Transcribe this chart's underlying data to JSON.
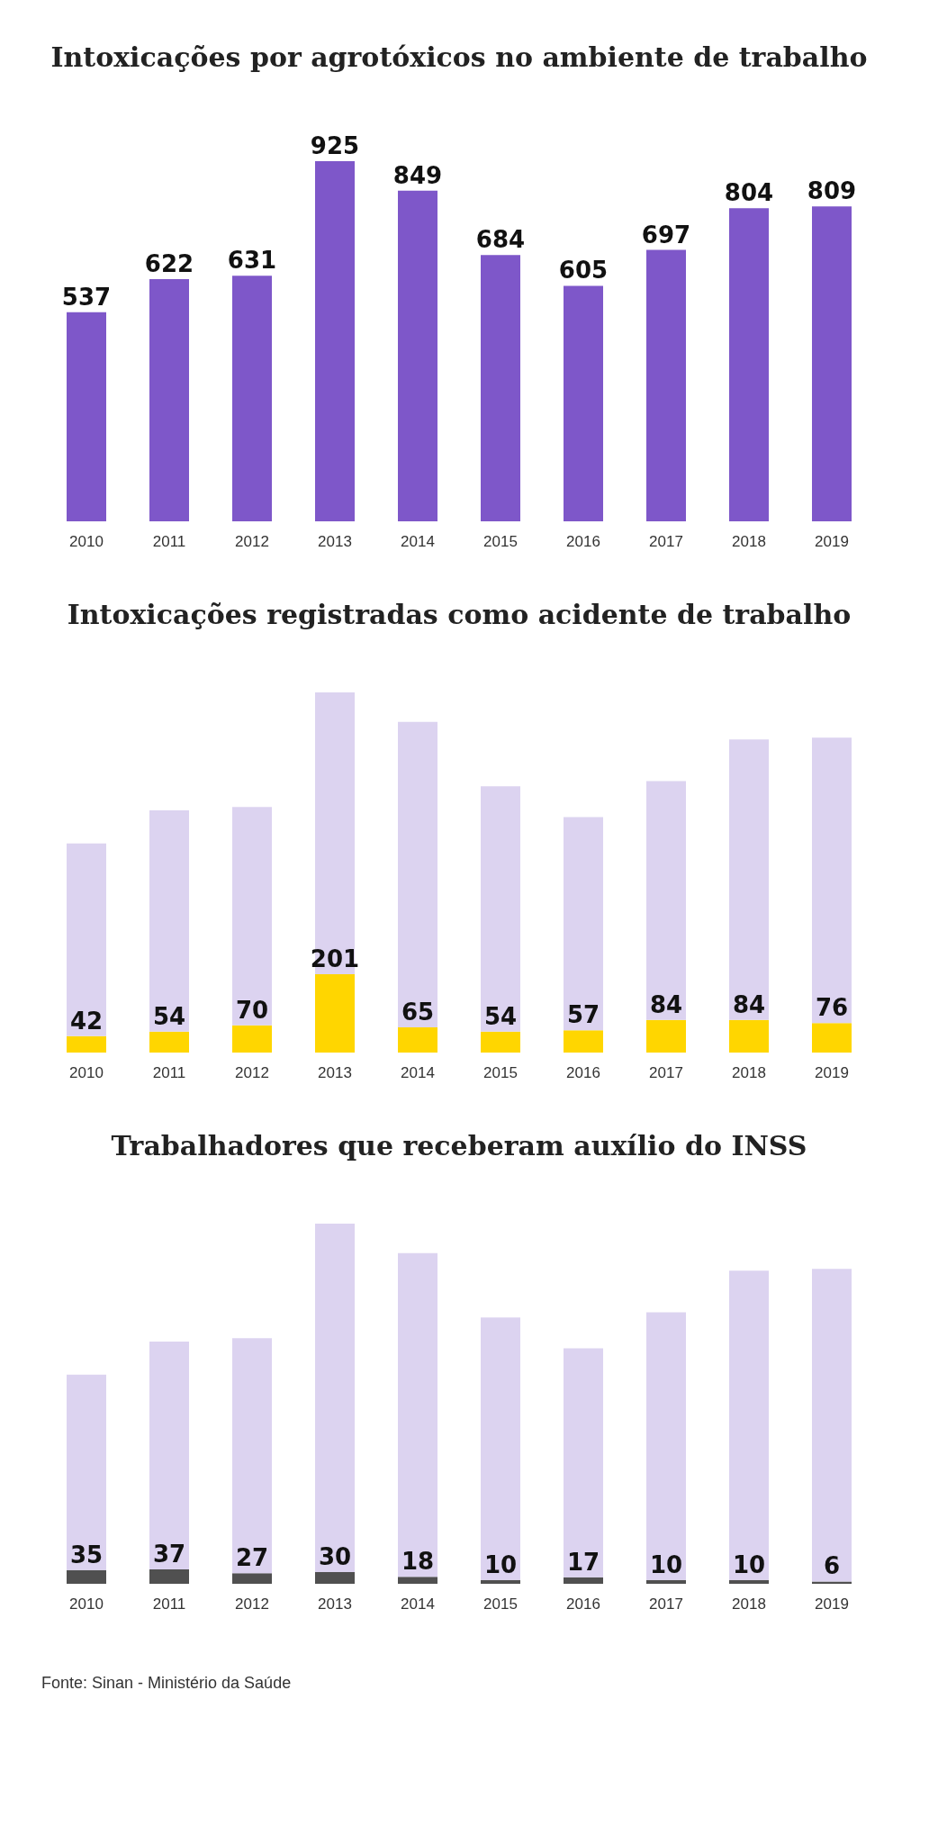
{
  "chart_data": [
    {
      "type": "bar",
      "title": "Intoxicações por agrotóxicos no ambiente de trabalho",
      "categories": [
        "2010",
        "2011",
        "2012",
        "2013",
        "2014",
        "2015",
        "2016",
        "2017",
        "2018",
        "2019"
      ],
      "series": [
        {
          "color": "#7e57c9",
          "values": [
            537,
            622,
            631,
            925,
            849,
            684,
            605,
            697,
            804,
            809
          ]
        }
      ],
      "data_labels": true,
      "legend": false,
      "grid": false
    },
    {
      "type": "bar",
      "title": "Intoxicações registradas como acidente de trabalho",
      "categories": [
        "2010",
        "2011",
        "2012",
        "2013",
        "2014",
        "2015",
        "2016",
        "2017",
        "2018",
        "2019"
      ],
      "stacked": true,
      "series": [
        {
          "color": "#ffd600",
          "values": [
            42,
            54,
            70,
            201,
            65,
            54,
            57,
            84,
            84,
            76
          ],
          "value_labels": [
            "42",
            "54",
            "70",
            "201",
            "65",
            "54",
            "57",
            "84",
            "84",
            "76"
          ]
        },
        {
          "color": "#dcd3f0",
          "values": [
            495,
            568,
            561,
            724,
            784,
            630,
            548,
            613,
            720,
            733
          ]
        }
      ],
      "legend": false,
      "grid": false
    },
    {
      "type": "bar",
      "title": "Trabalhadores que receberam auxílio do INSS",
      "categories": [
        "2010",
        "2011",
        "2012",
        "2013",
        "2014",
        "2015",
        "2016",
        "2017",
        "2018",
        "2019"
      ],
      "stacked": true,
      "series": [
        {
          "color": "#505050",
          "values": [
            35,
            37,
            27,
            30,
            18,
            10,
            17,
            10,
            10,
            6
          ],
          "value_labels": [
            "35",
            "37",
            "27",
            "30",
            "18",
            "10",
            "17",
            "10",
            "10",
            "6"
          ]
        },
        {
          "color": "#dcd3f0",
          "values": [
            502,
            585,
            604,
            895,
            831,
            674,
            588,
            687,
            794,
            803
          ]
        }
      ],
      "legend": false,
      "grid": false,
      "annotations": [
        "Fonte: Sinan - Ministério da Saúde"
      ]
    }
  ]
}
